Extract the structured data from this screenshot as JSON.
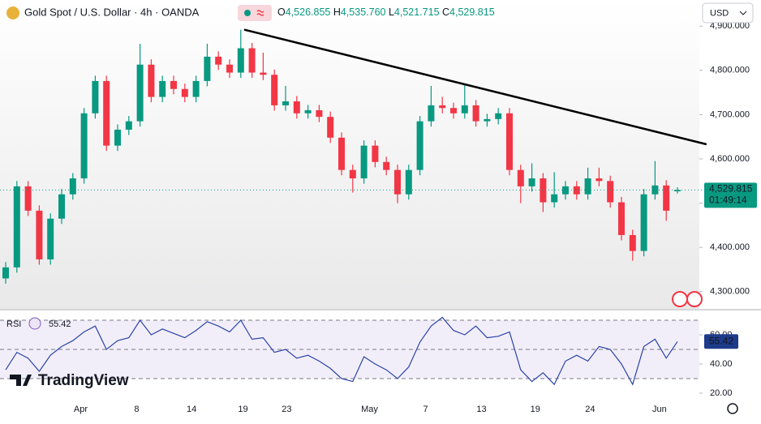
{
  "chart_data": [
    {
      "type": "candlestick",
      "title": "Gold Spot / U.S. Dollar · 4h · OANDA",
      "ohlc_header": [
        {
          "label": "O",
          "value": "4,526.855"
        },
        {
          "label": "H",
          "value": "4,535.760"
        },
        {
          "label": "L",
          "value": "4,521.715"
        },
        {
          "label": "C",
          "value": "4,529.815"
        }
      ],
      "currency": "USD",
      "brand": "TradingView",
      "up_color": "#089981",
      "down_color": "#f23645",
      "candles": [
        [
          4330,
          4367,
          4318,
          4355
        ],
        [
          4355,
          4550,
          4343,
          4538
        ],
        [
          4538,
          4550,
          4471,
          4483
        ],
        [
          4483,
          4495,
          4361,
          4373
        ],
        [
          4373,
          4477,
          4361,
          4465
        ],
        [
          4465,
          4532,
          4453,
          4520
        ],
        [
          4520,
          4568,
          4508,
          4556
        ],
        [
          4556,
          4715,
          4544,
          4703
        ],
        [
          4703,
          4788,
          4691,
          4776
        ],
        [
          4776,
          4788,
          4618,
          4630
        ],
        [
          4630,
          4678,
          4618,
          4666
        ],
        [
          4666,
          4697,
          4654,
          4685
        ],
        [
          4685,
          4860,
          4673,
          4813
        ],
        [
          4813,
          4825,
          4728,
          4740
        ],
        [
          4740,
          4788,
          4728,
          4776
        ],
        [
          4776,
          4788,
          4746,
          4758
        ],
        [
          4758,
          4770,
          4728,
          4740
        ],
        [
          4740,
          4788,
          4728,
          4776
        ],
        [
          4776,
          4860,
          4764,
          4831
        ],
        [
          4831,
          4843,
          4801,
          4813
        ],
        [
          4813,
          4825,
          4783,
          4795
        ],
        [
          4795,
          4892,
          4783,
          4850
        ],
        [
          4850,
          4862,
          4783,
          4795
        ],
        [
          4795,
          4840,
          4778,
          4790
        ],
        [
          4790,
          4802,
          4709,
          4721
        ],
        [
          4721,
          4765,
          4709,
          4730
        ],
        [
          4730,
          4742,
          4691,
          4703
        ],
        [
          4703,
          4722,
          4691,
          4710
        ],
        [
          4710,
          4722,
          4683,
          4695
        ],
        [
          4695,
          4707,
          4636,
          4648
        ],
        [
          4648,
          4660,
          4563,
          4575
        ],
        [
          4575,
          4587,
          4524,
          4556
        ],
        [
          4556,
          4642,
          4544,
          4630
        ],
        [
          4630,
          4642,
          4581,
          4593
        ],
        [
          4593,
          4605,
          4563,
          4575
        ],
        [
          4575,
          4587,
          4500,
          4520
        ],
        [
          4520,
          4587,
          4508,
          4575
        ],
        [
          4575,
          4697,
          4563,
          4685
        ],
        [
          4685,
          4765,
          4673,
          4721
        ],
        [
          4721,
          4740,
          4703,
          4715
        ],
        [
          4715,
          4727,
          4691,
          4703
        ],
        [
          4703,
          4768,
          4691,
          4721
        ],
        [
          4721,
          4733,
          4673,
          4685
        ],
        [
          4685,
          4702,
          4673,
          4690
        ],
        [
          4690,
          4715,
          4678,
          4703
        ],
        [
          4703,
          4715,
          4563,
          4575
        ],
        [
          4575,
          4587,
          4500,
          4538
        ],
        [
          4538,
          4590,
          4526,
          4556
        ],
        [
          4556,
          4568,
          4480,
          4502
        ],
        [
          4502,
          4570,
          4490,
          4520
        ],
        [
          4520,
          4550,
          4508,
          4538
        ],
        [
          4538,
          4550,
          4508,
          4520
        ],
        [
          4520,
          4580,
          4508,
          4556
        ],
        [
          4556,
          4580,
          4538,
          4550
        ],
        [
          4550,
          4562,
          4490,
          4502
        ],
        [
          4502,
          4514,
          4416,
          4428
        ],
        [
          4428,
          4440,
          4370,
          4392
        ],
        [
          4392,
          4532,
          4380,
          4520
        ],
        [
          4520,
          4595,
          4508,
          4540
        ],
        [
          4540,
          4552,
          4460,
          4483
        ],
        [
          4526.855,
          4535.76,
          4521.715,
          4529.815
        ]
      ],
      "ylim": [
        4263,
        4959
      ],
      "yticks": [
        {
          "value": 4300,
          "label": "4,300.000"
        },
        {
          "value": 4400,
          "label": "4,400.000"
        },
        {
          "value": 4500,
          "label": "4,500.000"
        },
        {
          "value": 4600,
          "label": "4,600.000"
        },
        {
          "value": 4700,
          "label": "4,700.000"
        },
        {
          "value": 4800,
          "label": "4,800.000"
        },
        {
          "value": 4900,
          "label": "4,900.000"
        }
      ],
      "xticks": [
        {
          "value": 6.7,
          "label": "Apr"
        },
        {
          "value": 11.7,
          "label": "8"
        },
        {
          "value": 16.6,
          "label": "14"
        },
        {
          "value": 21.2,
          "label": "19"
        },
        {
          "value": 25.1,
          "label": "23"
        },
        {
          "value": 32.5,
          "label": "May"
        },
        {
          "value": 37.5,
          "label": "7"
        },
        {
          "value": 42.5,
          "label": "13"
        },
        {
          "value": 47.3,
          "label": "19"
        },
        {
          "value": 52.2,
          "label": "24"
        },
        {
          "value": 58.4,
          "label": "Jun"
        }
      ],
      "last_price": {
        "value": 4529.815,
        "label": "4,529.815",
        "countdown": "01:49:14"
      },
      "trendline": {
        "x": [
          21.3,
          62.6
        ],
        "y": [
          4892,
          4633
        ],
        "color": "#000000"
      }
    },
    {
      "type": "line",
      "name": "RSI",
      "last_label": "55.42",
      "color": "#2a44a8",
      "values": [
        36,
        48,
        44,
        35,
        46,
        52,
        56,
        62,
        66,
        50,
        56,
        58,
        70,
        60,
        64,
        61,
        58,
        63,
        69,
        66,
        62,
        70,
        57,
        58,
        48,
        50,
        44,
        46,
        42,
        37,
        30,
        28,
        45,
        40,
        36,
        30,
        38,
        55,
        66,
        72,
        63,
        60,
        66,
        58,
        59,
        62,
        36,
        28,
        34,
        26,
        42,
        46,
        42,
        52,
        50,
        40,
        26,
        52,
        57,
        44,
        55.42
      ],
      "ylim": [
        17.2,
        76.7
      ],
      "yticks": [
        {
          "value": 20,
          "label": "20.00"
        },
        {
          "value": 40,
          "label": "40.00"
        },
        {
          "value": 60,
          "label": "60.00"
        }
      ],
      "levels": [
        30,
        50,
        70
      ]
    }
  ]
}
